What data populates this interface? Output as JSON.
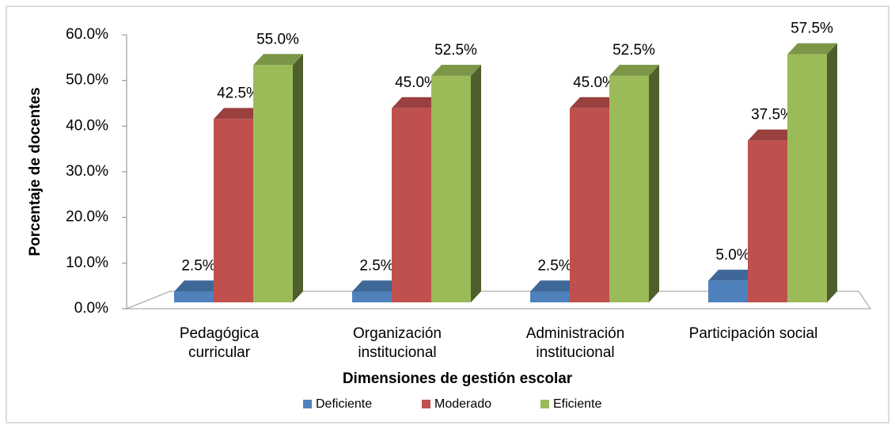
{
  "chart_data": {
    "type": "bar3d",
    "categories": [
      "Pedagógica curricular",
      "Organización institucional",
      "Administración institucional",
      "Participación social"
    ],
    "series": [
      {
        "name": "Deficiente",
        "color": "#4f81bd",
        "values": [
          2.5,
          2.5,
          2.5,
          5.0
        ],
        "value_labels": [
          "2.5%",
          "2.5%",
          "2.5%",
          "5.0%"
        ]
      },
      {
        "name": "Moderado",
        "color": "#c0504d",
        "values": [
          42.5,
          45.0,
          45.0,
          37.5
        ],
        "value_labels": [
          "42.5%",
          "45.0%",
          "45.0%",
          "37.5%"
        ]
      },
      {
        "name": "Eficiente",
        "color": "#9bbb59",
        "values": [
          55.0,
          52.5,
          52.5,
          57.5
        ],
        "value_labels": [
          "55.0%",
          "52.5%",
          "52.5%",
          "57.5%"
        ]
      }
    ],
    "ylabel": "Porcentaje de docentes",
    "xlabel": "Dimensiones de gestión escolar",
    "ylim": [
      0,
      60
    ],
    "yticks": [
      {
        "value": 0,
        "label": "0.0%"
      },
      {
        "value": 10,
        "label": "10.0%"
      },
      {
        "value": 20,
        "label": "20.0%"
      },
      {
        "value": 30,
        "label": "30.0%"
      },
      {
        "value": 40,
        "label": "40.0%"
      },
      {
        "value": 50,
        "label": "50.0%"
      },
      {
        "value": 60,
        "label": "60.0%"
      }
    ],
    "legend": "bottom"
  }
}
